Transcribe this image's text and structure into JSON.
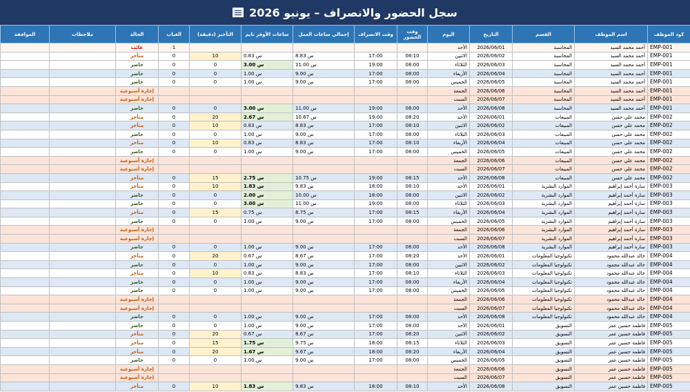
{
  "window": {
    "title": "سجل الحضور والانصراف – يونيو 2026",
    "title_icon": "document-icon"
  },
  "headers": [
    "كود الموظف",
    "اسم الموظف",
    "القسم",
    "التاريخ",
    "اليوم",
    "وقت الحضور",
    "وقت الانصراف",
    "إجمالي ساعات العمل",
    "ساعات الأوفر تايم",
    "التأخير (دقيقة)",
    "الغياب",
    "الحالة",
    "ملاحظات",
    "الموافقة"
  ],
  "colors": {
    "title_bg": "#1f3864",
    "header_bg": "#2e75b6",
    "present": "#375623",
    "late": "#c55a11",
    "absent": "#c00000",
    "off_row": "#fbe4d9",
    "overtime_hi": "#e2f0d9",
    "late_hi": "#fff2cc"
  },
  "rows": [
    {
      "id": "EMP-001",
      "name": "أحمد محمد السيد",
      "dept": "المحاسبة",
      "date": "2026/06/01",
      "day": "الأحد",
      "in": "",
      "out": "",
      "total": "",
      "ot": "",
      "late": "",
      "absent": "1",
      "status": "غائب",
      "kind": "absent",
      "tone": "abs"
    },
    {
      "id": "EMP-001",
      "name": "أحمد محمد السيد",
      "dept": "المحاسبة",
      "date": "2026/06/02",
      "day": "الاثنين",
      "in": "08:10",
      "out": "17:00",
      "total": "8.83 س",
      "ot": "0.83 س",
      "late": "10",
      "absent": "0",
      "status": "متأخر",
      "kind": "late",
      "tone": "w"
    },
    {
      "id": "EMP-001",
      "name": "أحمد محمد السيد",
      "dept": "المحاسبة",
      "date": "2026/06/03",
      "day": "الثلاثاء",
      "in": "08:00",
      "out": "19:00",
      "total": "11.00 س",
      "ot": "3.00 س",
      "late": "0",
      "absent": "0",
      "status": "حاضر",
      "kind": "present",
      "tone": "w"
    },
    {
      "id": "EMP-001",
      "name": "أحمد محمد السيد",
      "dept": "المحاسبة",
      "date": "2026/06/04",
      "day": "الأربعاء",
      "in": "08:00",
      "out": "17:00",
      "total": "9.00 س",
      "ot": "1.00 س",
      "late": "0",
      "absent": "0",
      "status": "حاضر",
      "kind": "present",
      "tone": "b"
    },
    {
      "id": "EMP-001",
      "name": "أحمد محمد السيد",
      "dept": "المحاسبة",
      "date": "2026/06/05",
      "day": "الخميس",
      "in": "08:00",
      "out": "17:00",
      "total": "9.00 س",
      "ot": "1.00 س",
      "late": "0",
      "absent": "0",
      "status": "حاضر",
      "kind": "present",
      "tone": "w"
    },
    {
      "id": "EMP-001",
      "name": "أحمد محمد السيد",
      "dept": "المحاسبة",
      "date": "2026/06/06",
      "day": "الجمعة",
      "in": "",
      "out": "",
      "total": "",
      "ot": "",
      "late": "",
      "absent": "",
      "status": "إجازة أسبوعية",
      "kind": "off",
      "tone": "off"
    },
    {
      "id": "EMP-001",
      "name": "أحمد محمد السيد",
      "dept": "المحاسبة",
      "date": "2026/06/07",
      "day": "السبت",
      "in": "",
      "out": "",
      "total": "",
      "ot": "",
      "late": "",
      "absent": "",
      "status": "إجازة أسبوعية",
      "kind": "off",
      "tone": "off"
    },
    {
      "id": "EMP-001",
      "name": "أحمد محمد السيد",
      "dept": "المحاسبة",
      "date": "2026/06/08",
      "day": "الأحد",
      "in": "08:00",
      "out": "19:00",
      "total": "11.00 س",
      "ot": "3.00 س",
      "late": "0",
      "absent": "0",
      "status": "حاضر",
      "kind": "present",
      "tone": "b"
    },
    {
      "id": "EMP-002",
      "name": "محمد علي حسن",
      "dept": "المبيعات",
      "date": "2026/06/01",
      "day": "الأحد",
      "in": "08:20",
      "out": "19:00",
      "total": "10.67 س",
      "ot": "2.67 س",
      "late": "20",
      "absent": "0",
      "status": "متأخر",
      "kind": "late",
      "tone": "w"
    },
    {
      "id": "EMP-002",
      "name": "محمد علي حسن",
      "dept": "المبيعات",
      "date": "2026/06/02",
      "day": "الاثنين",
      "in": "08:10",
      "out": "17:00",
      "total": "8.83 س",
      "ot": "0.83 س",
      "late": "10",
      "absent": "0",
      "status": "متأخر",
      "kind": "late",
      "tone": "b"
    },
    {
      "id": "EMP-002",
      "name": "محمد علي حسن",
      "dept": "المبيعات",
      "date": "2026/06/03",
      "day": "الثلاثاء",
      "in": "08:00",
      "out": "17:00",
      "total": "9.00 س",
      "ot": "1.00 س",
      "late": "0",
      "absent": "0",
      "status": "حاضر",
      "kind": "present",
      "tone": "w"
    },
    {
      "id": "EMP-002",
      "name": "محمد علي حسن",
      "dept": "المبيعات",
      "date": "2026/06/04",
      "day": "الأربعاء",
      "in": "08:10",
      "out": "17:00",
      "total": "8.83 س",
      "ot": "0.83 س",
      "late": "10",
      "absent": "0",
      "status": "متأخر",
      "kind": "late",
      "tone": "b"
    },
    {
      "id": "EMP-002",
      "name": "محمد علي حسن",
      "dept": "المبيعات",
      "date": "2026/06/05",
      "day": "الخميس",
      "in": "08:00",
      "out": "17:00",
      "total": "9.00 س",
      "ot": "1.00 س",
      "late": "0",
      "absent": "0",
      "status": "حاضر",
      "kind": "present",
      "tone": "w"
    },
    {
      "id": "EMP-002",
      "name": "محمد علي حسن",
      "dept": "المبيعات",
      "date": "2026/06/06",
      "day": "الجمعة",
      "in": "",
      "out": "",
      "total": "",
      "ot": "",
      "late": "",
      "absent": "",
      "status": "إجازة أسبوعية",
      "kind": "off",
      "tone": "off"
    },
    {
      "id": "EMP-002",
      "name": "محمد علي حسن",
      "dept": "المبيعات",
      "date": "2026/06/07",
      "day": "السبت",
      "in": "",
      "out": "",
      "total": "",
      "ot": "",
      "late": "",
      "absent": "",
      "status": "إجازة أسبوعية",
      "kind": "off",
      "tone": "off"
    },
    {
      "id": "EMP-002",
      "name": "محمد علي حسن",
      "dept": "المبيعات",
      "date": "2026/06/08",
      "day": "الأحد",
      "in": "08:15",
      "out": "19:00",
      "total": "10.75 س",
      "ot": "2.75 س",
      "late": "15",
      "absent": "0",
      "status": "متأخر",
      "kind": "late",
      "tone": "b"
    },
    {
      "id": "EMP-003",
      "name": "سارة أحمد إبراهيم",
      "dept": "الموارد البشرية",
      "date": "2026/06/01",
      "day": "الأحد",
      "in": "08:10",
      "out": "18:00",
      "total": "9.83 س",
      "ot": "1.83 س",
      "late": "10",
      "absent": "0",
      "status": "متأخر",
      "kind": "late",
      "tone": "w"
    },
    {
      "id": "EMP-003",
      "name": "سارة أحمد إبراهيم",
      "dept": "الموارد البشرية",
      "date": "2026/06/02",
      "day": "الاثنين",
      "in": "08:00",
      "out": "18:00",
      "total": "10.00 س",
      "ot": "2.00 س",
      "late": "0",
      "absent": "0",
      "status": "حاضر",
      "kind": "present",
      "tone": "b"
    },
    {
      "id": "EMP-003",
      "name": "سارة أحمد إبراهيم",
      "dept": "الموارد البشرية",
      "date": "2026/06/03",
      "day": "الثلاثاء",
      "in": "08:00",
      "out": "19:00",
      "total": "11.00 س",
      "ot": "3.00 س",
      "late": "0",
      "absent": "0",
      "status": "حاضر",
      "kind": "present",
      "tone": "w"
    },
    {
      "id": "EMP-003",
      "name": "سارة أحمد إبراهيم",
      "dept": "الموارد البشرية",
      "date": "2026/06/04",
      "day": "الأربعاء",
      "in": "08:15",
      "out": "17:00",
      "total": "8.75 س",
      "ot": "0.75 س",
      "late": "15",
      "absent": "0",
      "status": "متأخر",
      "kind": "late",
      "tone": "b"
    },
    {
      "id": "EMP-003",
      "name": "سارة أحمد إبراهيم",
      "dept": "الموارد البشرية",
      "date": "2026/06/05",
      "day": "الخميس",
      "in": "08:00",
      "out": "17:00",
      "total": "9.00 س",
      "ot": "1.00 س",
      "late": "0",
      "absent": "0",
      "status": "حاضر",
      "kind": "present",
      "tone": "w"
    },
    {
      "id": "EMP-003",
      "name": "سارة أحمد إبراهيم",
      "dept": "الموارد البشرية",
      "date": "2026/06/06",
      "day": "الجمعة",
      "in": "",
      "out": "",
      "total": "",
      "ot": "",
      "late": "",
      "absent": "",
      "status": "إجازة أسبوعية",
      "kind": "off",
      "tone": "off"
    },
    {
      "id": "EMP-003",
      "name": "سارة أحمد إبراهيم",
      "dept": "الموارد البشرية",
      "date": "2026/06/07",
      "day": "السبت",
      "in": "",
      "out": "",
      "total": "",
      "ot": "",
      "late": "",
      "absent": "",
      "status": "إجازة أسبوعية",
      "kind": "off",
      "tone": "off"
    },
    {
      "id": "EMP-003",
      "name": "سارة أحمد إبراهيم",
      "dept": "الموارد البشرية",
      "date": "2026/06/08",
      "day": "الأحد",
      "in": "08:00",
      "out": "17:00",
      "total": "9.00 س",
      "ot": "1.00 س",
      "late": "0",
      "absent": "0",
      "status": "حاضر",
      "kind": "present",
      "tone": "b"
    },
    {
      "id": "EMP-004",
      "name": "خالد عبدالله محمود",
      "dept": "تكنولوجيا المعلومات",
      "date": "2026/06/01",
      "day": "الأحد",
      "in": "08:20",
      "out": "17:00",
      "total": "8.67 س",
      "ot": "0.67 س",
      "late": "20",
      "absent": "0",
      "status": "متأخر",
      "kind": "late",
      "tone": "w"
    },
    {
      "id": "EMP-004",
      "name": "خالد عبدالله محمود",
      "dept": "تكنولوجيا المعلومات",
      "date": "2026/06/02",
      "day": "الاثنين",
      "in": "08:00",
      "out": "17:00",
      "total": "9.00 س",
      "ot": "1.00 س",
      "late": "0",
      "absent": "0",
      "status": "حاضر",
      "kind": "present",
      "tone": "b"
    },
    {
      "id": "EMP-004",
      "name": "خالد عبدالله محمود",
      "dept": "تكنولوجيا المعلومات",
      "date": "2026/06/03",
      "day": "الثلاثاء",
      "in": "08:10",
      "out": "17:00",
      "total": "8.83 س",
      "ot": "0.83 س",
      "late": "10",
      "absent": "0",
      "status": "متأخر",
      "kind": "late",
      "tone": "w"
    },
    {
      "id": "EMP-004",
      "name": "خالد عبدالله محمود",
      "dept": "تكنولوجيا المعلومات",
      "date": "2026/06/04",
      "day": "الأربعاء",
      "in": "08:00",
      "out": "17:00",
      "total": "9.00 س",
      "ot": "1.00 س",
      "late": "0",
      "absent": "0",
      "status": "حاضر",
      "kind": "present",
      "tone": "b"
    },
    {
      "id": "EMP-004",
      "name": "خالد عبدالله محمود",
      "dept": "تكنولوجيا المعلومات",
      "date": "2026/06/05",
      "day": "الخميس",
      "in": "08:00",
      "out": "17:00",
      "total": "9.00 س",
      "ot": "1.00 س",
      "late": "0",
      "absent": "0",
      "status": "حاضر",
      "kind": "present",
      "tone": "w"
    },
    {
      "id": "EMP-004",
      "name": "خالد عبدالله محمود",
      "dept": "تكنولوجيا المعلومات",
      "date": "2026/06/06",
      "day": "الجمعة",
      "in": "",
      "out": "",
      "total": "",
      "ot": "",
      "late": "",
      "absent": "",
      "status": "إجازة أسبوعية",
      "kind": "off",
      "tone": "off"
    },
    {
      "id": "EMP-004",
      "name": "خالد عبدالله محمود",
      "dept": "تكنولوجيا المعلومات",
      "date": "2026/06/07",
      "day": "السبت",
      "in": "",
      "out": "",
      "total": "",
      "ot": "",
      "late": "",
      "absent": "",
      "status": "إجازة أسبوعية",
      "kind": "off",
      "tone": "off"
    },
    {
      "id": "EMP-004",
      "name": "خالد عبدالله محمود",
      "dept": "تكنولوجيا المعلومات",
      "date": "2026/06/08",
      "day": "الأحد",
      "in": "08:00",
      "out": "17:00",
      "total": "9.00 س",
      "ot": "1.00 س",
      "late": "0",
      "absent": "0",
      "status": "حاضر",
      "kind": "present",
      "tone": "b"
    },
    {
      "id": "EMP-005",
      "name": "فاطمة حسين عمر",
      "dept": "التسويق",
      "date": "2026/06/01",
      "day": "الأحد",
      "in": "08:00",
      "out": "17:00",
      "total": "9.00 س",
      "ot": "1.00 س",
      "late": "0",
      "absent": "0",
      "status": "حاضر",
      "kind": "present",
      "tone": "w"
    },
    {
      "id": "EMP-005",
      "name": "فاطمة حسين عمر",
      "dept": "التسويق",
      "date": "2026/06/02",
      "day": "الاثنين",
      "in": "08:20",
      "out": "17:00",
      "total": "8.67 س",
      "ot": "0.67 س",
      "late": "20",
      "absent": "0",
      "status": "متأخر",
      "kind": "late",
      "tone": "b"
    },
    {
      "id": "EMP-005",
      "name": "فاطمة حسين عمر",
      "dept": "التسويق",
      "date": "2026/06/03",
      "day": "الثلاثاء",
      "in": "08:15",
      "out": "18:00",
      "total": "9.75 س",
      "ot": "1.75 س",
      "late": "15",
      "absent": "0",
      "status": "متأخر",
      "kind": "late",
      "tone": "w"
    },
    {
      "id": "EMP-005",
      "name": "فاطمة حسين عمر",
      "dept": "التسويق",
      "date": "2026/06/04",
      "day": "الأربعاء",
      "in": "08:20",
      "out": "18:00",
      "total": "9.67 س",
      "ot": "1.67 س",
      "late": "20",
      "absent": "0",
      "status": "متأخر",
      "kind": "late",
      "tone": "b"
    },
    {
      "id": "EMP-005",
      "name": "فاطمة حسين عمر",
      "dept": "التسويق",
      "date": "2026/06/05",
      "day": "الخميس",
      "in": "08:00",
      "out": "17:00",
      "total": "9.00 س",
      "ot": "1.00 س",
      "late": "0",
      "absent": "0",
      "status": "حاضر",
      "kind": "present",
      "tone": "w"
    },
    {
      "id": "EMP-005",
      "name": "فاطمة حسين عمر",
      "dept": "التسويق",
      "date": "2026/06/06",
      "day": "الجمعة",
      "in": "",
      "out": "",
      "total": "",
      "ot": "",
      "late": "",
      "absent": "",
      "status": "إجازة أسبوعية",
      "kind": "off",
      "tone": "off"
    },
    {
      "id": "EMP-005",
      "name": "فاطمة حسين عمر",
      "dept": "التسويق",
      "date": "2026/06/07",
      "day": "السبت",
      "in": "",
      "out": "",
      "total": "",
      "ot": "",
      "late": "",
      "absent": "",
      "status": "إجازة أسبوعية",
      "kind": "off",
      "tone": "off"
    },
    {
      "id": "EMP-005",
      "name": "فاطمة حسين عمر",
      "dept": "التسويق",
      "date": "2026/06/08",
      "day": "الأحد",
      "in": "08:10",
      "out": "18:00",
      "total": "9.83 س",
      "ot": "1.83 س",
      "late": "10",
      "absent": "0",
      "status": "متأخر",
      "kind": "late",
      "tone": "b"
    }
  ]
}
